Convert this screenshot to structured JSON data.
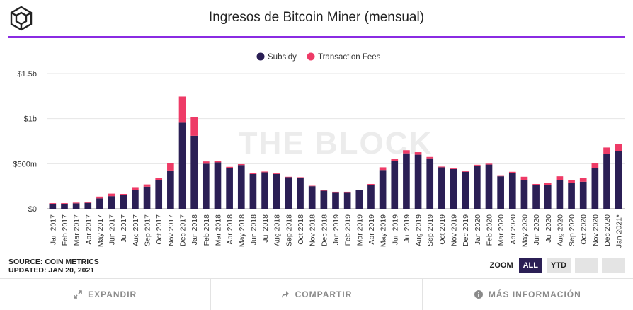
{
  "header": {
    "title": "Ingresos de Bitcoin Miner (mensual)",
    "logo_icon": "cube-logo-icon",
    "accent_color": "#8a2be2"
  },
  "watermark": "THE BLOCK",
  "source": {
    "line1": "SOURCE: COIN METRICS",
    "line2": "UPDATED: JAN 20, 2021"
  },
  "zoom": {
    "label": "ZOOM",
    "buttons": [
      "ALL",
      "YTD"
    ],
    "active": "ALL"
  },
  "footer": {
    "expand": "EXPANDIR",
    "share": "COMPARTIR",
    "info": "MÁS INFORMACIÓN",
    "expand_icon": "expand-arrows-icon",
    "share_icon": "share-arrow-icon",
    "info_icon": "info-circle-icon"
  },
  "chart_data": {
    "type": "bar",
    "stacked": true,
    "title": "Ingresos de Bitcoin Miner (mensual)",
    "legend": {
      "placement": "top-center",
      "entries": [
        "Subsidy",
        "Transaction Fees"
      ]
    },
    "colors": {
      "Subsidy": "#2b1f55",
      "Transaction Fees": "#ee3b67"
    },
    "ylim": [
      0,
      1500000000
    ],
    "yticks": [
      {
        "value": 0,
        "label": "$0"
      },
      {
        "value": 500000000,
        "label": "$500m"
      },
      {
        "value": 1000000000,
        "label": "$1b"
      },
      {
        "value": 1500000000,
        "label": "$1.5b"
      }
    ],
    "grid": true,
    "categories": [
      "Jan 2017",
      "Feb 2017",
      "Mar 2017",
      "Apr 2017",
      "May 2017",
      "Jun 2017",
      "Jul 2017",
      "Aug 2017",
      "Sep 2017",
      "Oct 2017",
      "Nov 2017",
      "Dec 2017",
      "Jan 2018",
      "Feb 2018",
      "Mar 2018",
      "Apr 2018",
      "May 2018",
      "Jun 2018",
      "Jul 2018",
      "Aug 2018",
      "Sep 2018",
      "Oct 2018",
      "Nov 2018",
      "Dec 2018",
      "Jan 2019",
      "Feb 2019",
      "Mar 2019",
      "Apr 2019",
      "May 2019",
      "Jun 2019",
      "Jul 2019",
      "Aug 2019",
      "Sep 2019",
      "Oct 2019",
      "Nov 2019",
      "Dec 2019",
      "Jan 2020",
      "Feb 2020",
      "Mar 2020",
      "Apr 2020",
      "May 2020",
      "Jun 2020",
      "Jul 2020",
      "Aug 2020",
      "Sep 2020",
      "Oct 2020",
      "Nov 2020",
      "Dec 2020",
      "Jan 2021*"
    ],
    "series": [
      {
        "name": "Subsidy",
        "values": [
          55000000,
          55000000,
          60000000,
          65000000,
          115000000,
          140000000,
          150000000,
          205000000,
          245000000,
          315000000,
          425000000,
          955000000,
          810000000,
          500000000,
          515000000,
          455000000,
          485000000,
          385000000,
          405000000,
          385000000,
          350000000,
          345000000,
          250000000,
          200000000,
          185000000,
          185000000,
          205000000,
          265000000,
          430000000,
          530000000,
          615000000,
          600000000,
          560000000,
          460000000,
          440000000,
          410000000,
          480000000,
          490000000,
          360000000,
          400000000,
          320000000,
          260000000,
          265000000,
          320000000,
          290000000,
          300000000,
          455000000,
          610000000,
          640000000
        ]
      },
      {
        "name": "Transaction Fees",
        "values": [
          7000000,
          7000000,
          8000000,
          10000000,
          20000000,
          28000000,
          15000000,
          35000000,
          25000000,
          30000000,
          80000000,
          290000000,
          205000000,
          25000000,
          12000000,
          10000000,
          10000000,
          8000000,
          8000000,
          7000000,
          5000000,
          5000000,
          5000000,
          4000000,
          4000000,
          4000000,
          6000000,
          10000000,
          30000000,
          25000000,
          35000000,
          28000000,
          15000000,
          8000000,
          7000000,
          7000000,
          8000000,
          10000000,
          12000000,
          10000000,
          35000000,
          15000000,
          25000000,
          40000000,
          30000000,
          45000000,
          55000000,
          70000000,
          80000000
        ]
      }
    ]
  }
}
